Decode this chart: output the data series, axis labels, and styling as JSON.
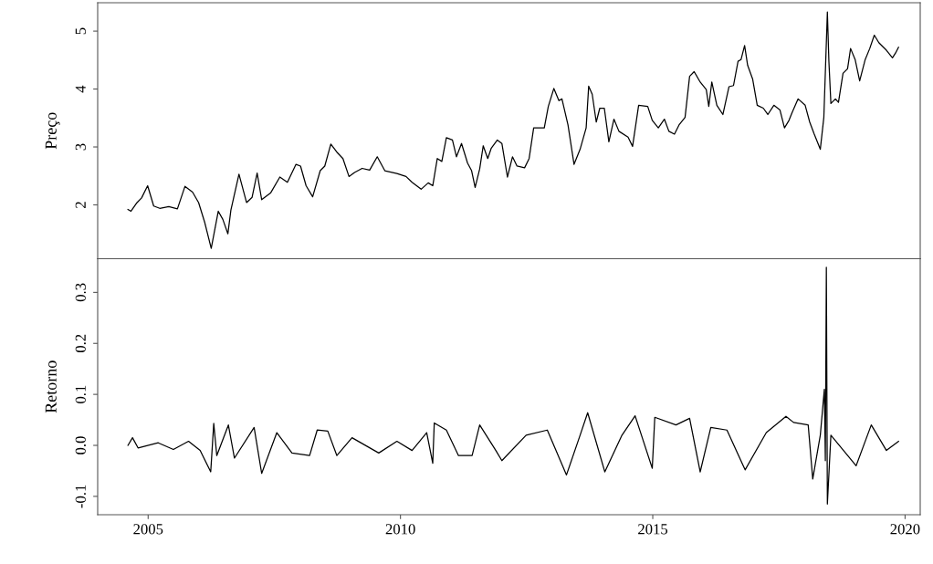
{
  "chart_data": [
    {
      "type": "line",
      "ylabel": "Preço",
      "tick_labels": "y",
      "xlim": [
        2004.0,
        2020.3
      ],
      "ylim": [
        1.07,
        5.49
      ],
      "yticks": [
        2,
        3,
        4,
        5
      ],
      "series": [
        {
          "color": "#000000",
          "x": [
            2004.6,
            2004.66,
            2004.78,
            2004.87,
            2004.99,
            2005.11,
            2005.23,
            2005.41,
            2005.58,
            2005.73,
            2005.88,
            2006.0,
            2006.12,
            2006.25,
            2006.39,
            2006.48,
            2006.58,
            2006.64,
            2006.8,
            2006.95,
            2007.06,
            2007.16,
            2007.25,
            2007.43,
            2007.61,
            2007.76,
            2007.93,
            2008.02,
            2008.13,
            2008.26,
            2008.41,
            2008.5,
            2008.62,
            2008.74,
            2008.86,
            2008.98,
            2009.09,
            2009.24,
            2009.39,
            2009.54,
            2009.69,
            2009.93,
            2010.11,
            2010.23,
            2010.41,
            2010.55,
            2010.64,
            2010.73,
            2010.82,
            2010.91,
            2011.03,
            2011.11,
            2011.21,
            2011.33,
            2011.41,
            2011.48,
            2011.57,
            2011.64,
            2011.73,
            2011.8,
            2011.92,
            2012.01,
            2012.12,
            2012.22,
            2012.31,
            2012.46,
            2012.55,
            2012.64,
            2012.85,
            2012.93,
            2013.04,
            2013.14,
            2013.2,
            2013.32,
            2013.44,
            2013.56,
            2013.68,
            2013.73,
            2013.8,
            2013.88,
            2013.95,
            2014.04,
            2014.13,
            2014.23,
            2014.33,
            2014.51,
            2014.6,
            2014.72,
            2014.9,
            2014.99,
            2015.11,
            2015.23,
            2015.32,
            2015.43,
            2015.52,
            2015.64,
            2015.73,
            2015.82,
            2015.94,
            2016.06,
            2016.11,
            2016.17,
            2016.27,
            2016.39,
            2016.51,
            2016.6,
            2016.69,
            2016.75,
            2016.82,
            2016.88,
            2016.98,
            2017.07,
            2017.19,
            2017.28,
            2017.4,
            2017.52,
            2017.61,
            2017.7,
            2017.76,
            2017.88,
            2018.02,
            2018.11,
            2018.2,
            2018.32,
            2018.39,
            2018.46,
            2018.49,
            2018.53,
            2018.62,
            2018.68,
            2018.77,
            2018.86,
            2018.92,
            2019.01,
            2019.1,
            2019.21,
            2019.3,
            2019.39,
            2019.48,
            2019.63,
            2019.75,
            2019.81,
            2019.87
          ],
          "values": [
            1.92,
            1.89,
            2.04,
            2.12,
            2.33,
            1.98,
            1.94,
            1.97,
            1.93,
            2.32,
            2.22,
            2.04,
            1.7,
            1.25,
            1.89,
            1.75,
            1.5,
            1.91,
            2.53,
            2.04,
            2.13,
            2.55,
            2.09,
            2.21,
            2.48,
            2.39,
            2.7,
            2.67,
            2.33,
            2.14,
            2.59,
            2.67,
            3.05,
            2.91,
            2.8,
            2.49,
            2.56,
            2.63,
            2.6,
            2.83,
            2.59,
            2.54,
            2.49,
            2.39,
            2.27,
            2.38,
            2.33,
            2.8,
            2.75,
            3.16,
            3.12,
            2.83,
            3.06,
            2.72,
            2.59,
            2.3,
            2.62,
            3.02,
            2.8,
            2.98,
            3.12,
            3.06,
            2.48,
            2.83,
            2.67,
            2.64,
            2.8,
            3.33,
            3.33,
            3.7,
            4.01,
            3.8,
            3.83,
            3.38,
            2.7,
            2.96,
            3.33,
            4.05,
            3.91,
            3.43,
            3.67,
            3.67,
            3.09,
            3.48,
            3.27,
            3.17,
            3.01,
            3.72,
            3.7,
            3.46,
            3.33,
            3.48,
            3.27,
            3.22,
            3.38,
            3.51,
            4.22,
            4.3,
            4.12,
            3.99,
            3.7,
            4.12,
            3.72,
            3.56,
            4.04,
            4.06,
            4.48,
            4.51,
            4.75,
            4.41,
            4.17,
            3.72,
            3.67,
            3.56,
            3.72,
            3.64,
            3.33,
            3.46,
            3.59,
            3.83,
            3.72,
            3.43,
            3.22,
            2.96,
            3.51,
            5.33,
            4.48,
            3.75,
            3.83,
            3.77,
            4.27,
            4.35,
            4.7,
            4.51,
            4.14,
            4.51,
            4.7,
            4.93,
            4.8,
            4.67,
            4.54,
            4.62,
            4.72
          ]
        }
      ]
    },
    {
      "type": "line",
      "ylabel": "Retorno",
      "xlim": [
        2004.0,
        2020.3
      ],
      "xticks": [
        2005,
        2010,
        2015,
        2020
      ],
      "ylim": [
        -0.136,
        0.366
      ],
      "yticks": [
        {
          "value": -0.1,
          "label": "-0.1"
        },
        {
          "value": 0,
          "label": "0.0"
        },
        0.1,
        0.2,
        0.3
      ],
      "series": [
        {
          "color": "#000000",
          "x": [
            2004.6,
            2004.69,
            2004.8,
            2005.2,
            2005.5,
            2005.8,
            2006.03,
            2006.24,
            2006.3,
            2006.36,
            2006.59,
            2006.71,
            2007.1,
            2007.25,
            2007.55,
            2007.85,
            2008.2,
            2008.35,
            2008.56,
            2008.74,
            2009.04,
            2009.57,
            2009.93,
            2010.23,
            2010.52,
            2010.64,
            2010.67,
            2010.91,
            2011.15,
            2011.42,
            2011.57,
            2011.89,
            2012.01,
            2012.49,
            2012.91,
            2013.29,
            2013.56,
            2013.71,
            2014.05,
            2014.39,
            2014.65,
            2014.99,
            2015.04,
            2015.46,
            2015.73,
            2015.94,
            2016.15,
            2016.47,
            2016.83,
            2017.25,
            2017.64,
            2017.79,
            2018.08,
            2018.17,
            2018.32,
            2018.4,
            2018.42,
            2018.44,
            2018.46,
            2018.53,
            2019.03,
            2019.33,
            2019.63,
            2019.87
          ],
          "values": [
            0.0,
            0.015,
            -0.005,
            0.005,
            -0.008,
            0.008,
            -0.01,
            -0.052,
            0.043,
            -0.02,
            0.04,
            -0.025,
            0.035,
            -0.055,
            0.025,
            -0.015,
            -0.02,
            0.03,
            0.028,
            -0.02,
            0.015,
            -0.015,
            0.008,
            -0.01,
            0.025,
            -0.035,
            0.044,
            0.03,
            -0.02,
            -0.02,
            0.04,
            -0.01,
            -0.03,
            0.02,
            0.03,
            -0.058,
            0.02,
            0.064,
            -0.052,
            0.02,
            0.058,
            -0.045,
            0.055,
            0.04,
            0.053,
            -0.052,
            0.035,
            0.03,
            -0.048,
            0.025,
            0.057,
            0.045,
            0.04,
            -0.066,
            0.02,
            0.11,
            -0.03,
            0.349,
            -0.115,
            0.02,
            -0.04,
            0.04,
            -0.01,
            0.008
          ]
        }
      ]
    }
  ]
}
